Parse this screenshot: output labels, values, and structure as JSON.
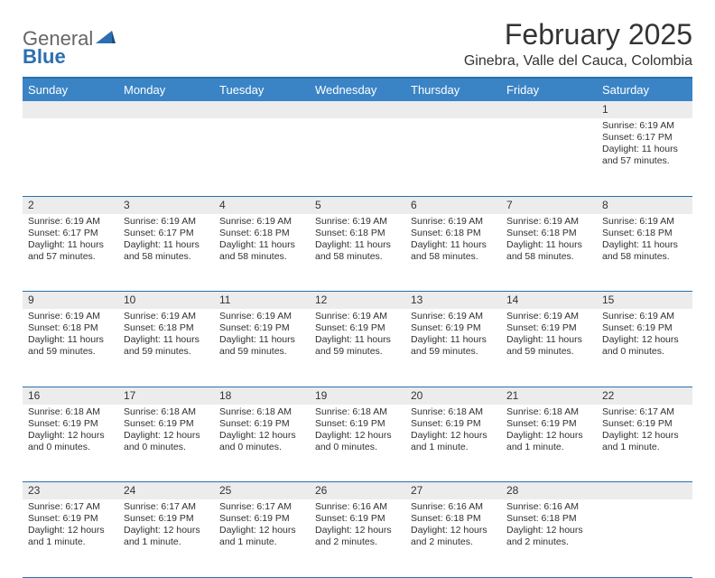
{
  "logo": {
    "main": "General",
    "accent": "Blue"
  },
  "title": "February 2025",
  "location": "Ginebra, Valle del Cauca, Colombia",
  "header_bg": "#3a84c6",
  "border_color": "#2b6fb0",
  "daynum_bg": "#ececec",
  "weekdays": [
    "Sunday",
    "Monday",
    "Tuesday",
    "Wednesday",
    "Thursday",
    "Friday",
    "Saturday"
  ],
  "weeks": [
    [
      null,
      null,
      null,
      null,
      null,
      null,
      {
        "n": "1",
        "sr": "6:19 AM",
        "ss": "6:17 PM",
        "dl": "11 hours and 57 minutes."
      }
    ],
    [
      {
        "n": "2",
        "sr": "6:19 AM",
        "ss": "6:17 PM",
        "dl": "11 hours and 57 minutes."
      },
      {
        "n": "3",
        "sr": "6:19 AM",
        "ss": "6:17 PM",
        "dl": "11 hours and 58 minutes."
      },
      {
        "n": "4",
        "sr": "6:19 AM",
        "ss": "6:18 PM",
        "dl": "11 hours and 58 minutes."
      },
      {
        "n": "5",
        "sr": "6:19 AM",
        "ss": "6:18 PM",
        "dl": "11 hours and 58 minutes."
      },
      {
        "n": "6",
        "sr": "6:19 AM",
        "ss": "6:18 PM",
        "dl": "11 hours and 58 minutes."
      },
      {
        "n": "7",
        "sr": "6:19 AM",
        "ss": "6:18 PM",
        "dl": "11 hours and 58 minutes."
      },
      {
        "n": "8",
        "sr": "6:19 AM",
        "ss": "6:18 PM",
        "dl": "11 hours and 58 minutes."
      }
    ],
    [
      {
        "n": "9",
        "sr": "6:19 AM",
        "ss": "6:18 PM",
        "dl": "11 hours and 59 minutes."
      },
      {
        "n": "10",
        "sr": "6:19 AM",
        "ss": "6:18 PM",
        "dl": "11 hours and 59 minutes."
      },
      {
        "n": "11",
        "sr": "6:19 AM",
        "ss": "6:19 PM",
        "dl": "11 hours and 59 minutes."
      },
      {
        "n": "12",
        "sr": "6:19 AM",
        "ss": "6:19 PM",
        "dl": "11 hours and 59 minutes."
      },
      {
        "n": "13",
        "sr": "6:19 AM",
        "ss": "6:19 PM",
        "dl": "11 hours and 59 minutes."
      },
      {
        "n": "14",
        "sr": "6:19 AM",
        "ss": "6:19 PM",
        "dl": "11 hours and 59 minutes."
      },
      {
        "n": "15",
        "sr": "6:19 AM",
        "ss": "6:19 PM",
        "dl": "12 hours and 0 minutes."
      }
    ],
    [
      {
        "n": "16",
        "sr": "6:18 AM",
        "ss": "6:19 PM",
        "dl": "12 hours and 0 minutes."
      },
      {
        "n": "17",
        "sr": "6:18 AM",
        "ss": "6:19 PM",
        "dl": "12 hours and 0 minutes."
      },
      {
        "n": "18",
        "sr": "6:18 AM",
        "ss": "6:19 PM",
        "dl": "12 hours and 0 minutes."
      },
      {
        "n": "19",
        "sr": "6:18 AM",
        "ss": "6:19 PM",
        "dl": "12 hours and 0 minutes."
      },
      {
        "n": "20",
        "sr": "6:18 AM",
        "ss": "6:19 PM",
        "dl": "12 hours and 1 minute."
      },
      {
        "n": "21",
        "sr": "6:18 AM",
        "ss": "6:19 PM",
        "dl": "12 hours and 1 minute."
      },
      {
        "n": "22",
        "sr": "6:17 AM",
        "ss": "6:19 PM",
        "dl": "12 hours and 1 minute."
      }
    ],
    [
      {
        "n": "23",
        "sr": "6:17 AM",
        "ss": "6:19 PM",
        "dl": "12 hours and 1 minute."
      },
      {
        "n": "24",
        "sr": "6:17 AM",
        "ss": "6:19 PM",
        "dl": "12 hours and 1 minute."
      },
      {
        "n": "25",
        "sr": "6:17 AM",
        "ss": "6:19 PM",
        "dl": "12 hours and 1 minute."
      },
      {
        "n": "26",
        "sr": "6:16 AM",
        "ss": "6:19 PM",
        "dl": "12 hours and 2 minutes."
      },
      {
        "n": "27",
        "sr": "6:16 AM",
        "ss": "6:18 PM",
        "dl": "12 hours and 2 minutes."
      },
      {
        "n": "28",
        "sr": "6:16 AM",
        "ss": "6:18 PM",
        "dl": "12 hours and 2 minutes."
      },
      null
    ]
  ],
  "labels": {
    "sunrise": "Sunrise:",
    "sunset": "Sunset:",
    "daylight": "Daylight:"
  }
}
